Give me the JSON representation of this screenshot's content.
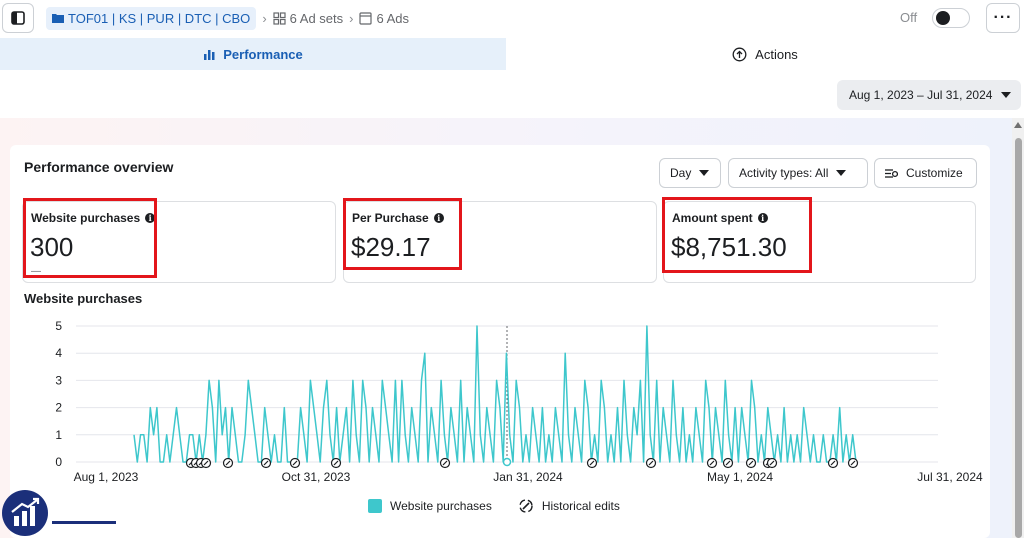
{
  "breadcrumb": {
    "campaign": "TOF01 | KS | PUR | DTC | CBO",
    "ad_sets": "6 Ad sets",
    "ads": "6 Ads"
  },
  "status": {
    "label": "Off"
  },
  "tabs": {
    "performance": "Performance",
    "actions": "Actions"
  },
  "date_range": "Aug 1, 2023 – Jul 31, 2024",
  "overview": {
    "title": "Performance overview",
    "day_button": "Day",
    "activity_button": "Activity types: All",
    "customize_button": "Customize"
  },
  "metrics": [
    {
      "label": "Website purchases",
      "value": "300",
      "delta": "—"
    },
    {
      "label": "Per Purchase",
      "value": "$29.17"
    },
    {
      "label": "Amount spent",
      "value": "$8,751.30",
      "delta": "—"
    }
  ],
  "chart_title": "Website purchases",
  "legend": {
    "series": "Website purchases",
    "edits": "Historical edits"
  },
  "colors": {
    "accent": "#1a5fb4",
    "series": "#3ec7cc",
    "highlight": "#e3161b"
  },
  "chart_data": {
    "type": "line",
    "title": "Website purchases",
    "ylim": [
      0,
      5
    ],
    "y_ticks": [
      "0",
      "1",
      "2",
      "3",
      "4",
      "5"
    ],
    "x_ticks": [
      "Aug 1, 2023",
      "Oct 31, 2023",
      "Jan 31, 2024",
      "May 1, 2024",
      "Jul 31, 2024"
    ],
    "series": [
      {
        "name": "Website purchases",
        "values": [
          1,
          0,
          1,
          1,
          0,
          2,
          1,
          2,
          0,
          0,
          1,
          0,
          1,
          2,
          1,
          0,
          0,
          1,
          1,
          0,
          1,
          0,
          1,
          3,
          2,
          0,
          3,
          1,
          2,
          0,
          2,
          1,
          0,
          0,
          1,
          3,
          2,
          1,
          0,
          0,
          2,
          1,
          0,
          1,
          0,
          0,
          2,
          0,
          0,
          0,
          0,
          2,
          1,
          0,
          3,
          2,
          1,
          0,
          2,
          3,
          1,
          0,
          2,
          0,
          1,
          2,
          0,
          3,
          1,
          0,
          3,
          2,
          0,
          2,
          1,
          0,
          3,
          2,
          1,
          0,
          3,
          0,
          3,
          1,
          0,
          2,
          1,
          0,
          3,
          4,
          0,
          2,
          1,
          0,
          3,
          1,
          0,
          2,
          1,
          0,
          3,
          0,
          2,
          1,
          0,
          5,
          1,
          0,
          2,
          1,
          0,
          3,
          2,
          0,
          4,
          1,
          0,
          3,
          2,
          0,
          1,
          0,
          2,
          1,
          0,
          2,
          0,
          1,
          0,
          2,
          1,
          0,
          4,
          1,
          0,
          2,
          1,
          0,
          3,
          2,
          0,
          1,
          0,
          3,
          2,
          0,
          1,
          0,
          2,
          0,
          3,
          1,
          0,
          2,
          1,
          3,
          0,
          5,
          1,
          0,
          3,
          0,
          2,
          1,
          0,
          3,
          1,
          0,
          2,
          0,
          1,
          0,
          2,
          1,
          0,
          3,
          2,
          0,
          2,
          1,
          0,
          3,
          1,
          0,
          2,
          0,
          2,
          1,
          0,
          3,
          2,
          0,
          1,
          0,
          2,
          1,
          0,
          1,
          0,
          2,
          0,
          1,
          0,
          1,
          0,
          2,
          1,
          0,
          1,
          0,
          0,
          1,
          0,
          0,
          1,
          0,
          2,
          0,
          1,
          0,
          1,
          0
        ]
      }
    ],
    "historical_edit_markers": 18,
    "grid": true
  }
}
